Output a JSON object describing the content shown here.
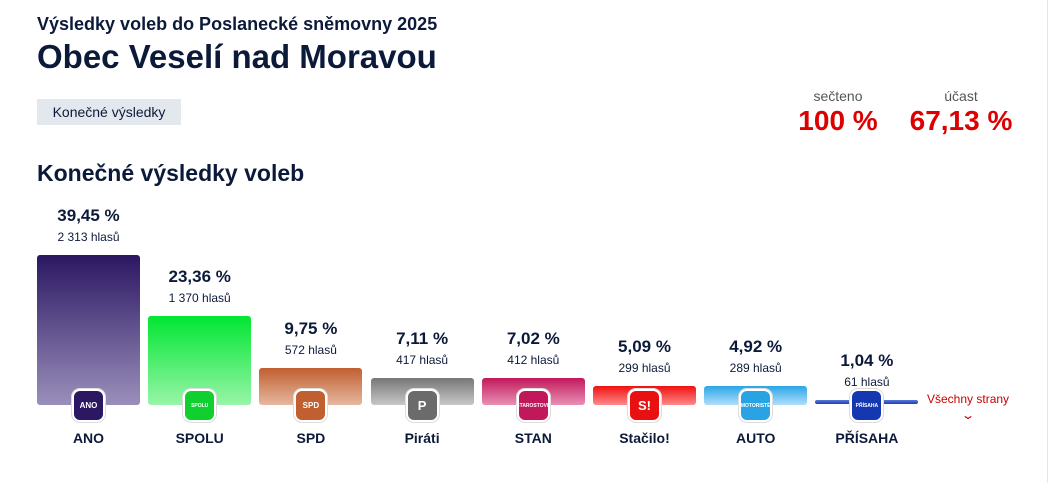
{
  "header": {
    "subtitle": "Výsledky voleb do Poslanecké sněmovny 2025",
    "title": "Obec Veselí nad Moravou",
    "tag": "Konečné výsledky"
  },
  "stats": {
    "counted_label": "sečteno",
    "counted_value": "100 %",
    "turnout_label": "účast",
    "turnout_value": "67,13 %"
  },
  "section_title": "Konečné výsledky voleb",
  "parties": [
    {
      "name": "ANO",
      "pct": 39.45,
      "pct_label": "39,45 %",
      "votes": "2 313 hlasů",
      "logo": "ANO",
      "color_top": "#2b1762",
      "color_bottom": "#9a8fbb",
      "logo_bg": "#2b1762"
    },
    {
      "name": "SPOLU",
      "pct": 23.36,
      "pct_label": "23,36 %",
      "votes": "1 370 hlasů",
      "logo": "SPOLU",
      "color_top": "#00e632",
      "color_bottom": "#98f5a8",
      "logo_bg": "#10d030"
    },
    {
      "name": "SPD",
      "pct": 9.75,
      "pct_label": "9,75 %",
      "votes": "572 hlasů",
      "logo": "SPD",
      "color_top": "#c05f30",
      "color_bottom": "#e6b8a0",
      "logo_bg": "#c05f30"
    },
    {
      "name": "Piráti",
      "pct": 7.11,
      "pct_label": "7,11 %",
      "votes": "417 hlasů",
      "logo": "P",
      "color_top": "#777",
      "color_bottom": "#c8c8c8",
      "logo_bg": "#6b6b6b"
    },
    {
      "name": "STAN",
      "pct": 7.02,
      "pct_label": "7,02 %",
      "votes": "412 hlasů",
      "logo": "STAROSTOVÉ",
      "color_top": "#c2185b",
      "color_bottom": "#e890b5",
      "logo_bg": "#c2185b"
    },
    {
      "name": "Stačilo!",
      "pct": 5.09,
      "pct_label": "5,09 %",
      "votes": "299 hlasů",
      "logo": "S!",
      "color_top": "#f01010",
      "color_bottom": "#ff8a8a",
      "logo_bg": "#e81010"
    },
    {
      "name": "AUTO",
      "pct": 4.92,
      "pct_label": "4,92 %",
      "votes": "289 hlasů",
      "logo": "MOTORISTÉ",
      "color_top": "#2aa6e6",
      "color_bottom": "#b0defa",
      "logo_bg": "#29a3e3"
    },
    {
      "name": "PŘÍSAHA",
      "pct": 1.04,
      "pct_label": "1,04 %",
      "votes": "61 hlasů",
      "logo": "PŘÍSAHA",
      "color_top": "#1c3fae",
      "color_bottom": "#1c3fae",
      "logo_bg": "#1537b0"
    }
  ],
  "all_parties_link": "Všechny strany",
  "chevron": "⌄"
}
